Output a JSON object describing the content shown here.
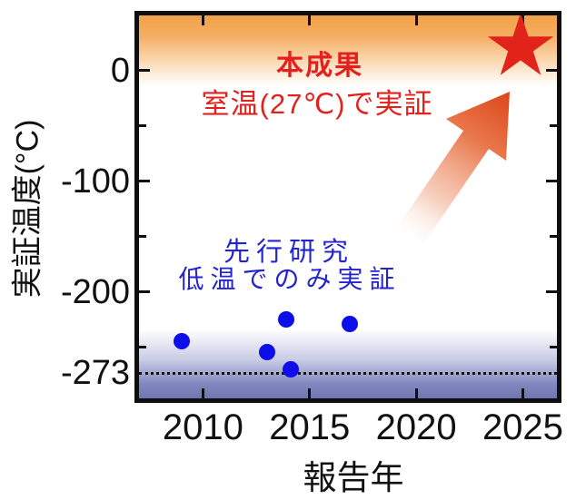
{
  "chart_data": {
    "type": "scatter",
    "title": "",
    "xlabel": "報告年",
    "ylabel": "実証温度(°C)",
    "xlim": [
      2007,
      2026.6
    ],
    "ylim": [
      -296,
      50
    ],
    "grid": false,
    "x_ticks": [
      2010,
      2015,
      2020,
      2025
    ],
    "y_ticks": [
      {
        "value": 0,
        "label": "0"
      },
      {
        "value": -100,
        "label": "-100"
      },
      {
        "value": -200,
        "label": "-200"
      }
    ],
    "y_minor_ticks": [
      -50,
      -150,
      -250
    ],
    "absolute_zero": {
      "value": -273,
      "label": "-273"
    },
    "series": [
      {
        "name": "先行研究(低温でのみ実証)",
        "marker": "circle",
        "color": "#0e0ee9",
        "points": [
          {
            "x": 2009.0,
            "y": -244
          },
          {
            "x": 2013.0,
            "y": -254
          },
          {
            "x": 2013.9,
            "y": -225
          },
          {
            "x": 2014.1,
            "y": -270
          },
          {
            "x": 2016.9,
            "y": -229
          }
        ]
      },
      {
        "name": "本成果(室温27℃で実証)",
        "marker": "star",
        "color": "#e2231a",
        "points": [
          {
            "x": 2024.9,
            "y": 27
          }
        ]
      }
    ],
    "annotations": {
      "result_title": "本成果",
      "result_desc": "室温(27℃)で実証",
      "prior_title": "先行研究",
      "prior_desc": "低温でのみ実証"
    },
    "colors": {
      "result_red": "#e3201c",
      "prior_blue": "#2323cf",
      "dot_blue": "#0e0ee9",
      "star_red": "#e2231a",
      "room_temp_band_orange": "#f2a247",
      "cryo_band_violet": "#6f76b3",
      "axis_black": "#0e0e0e"
    }
  }
}
